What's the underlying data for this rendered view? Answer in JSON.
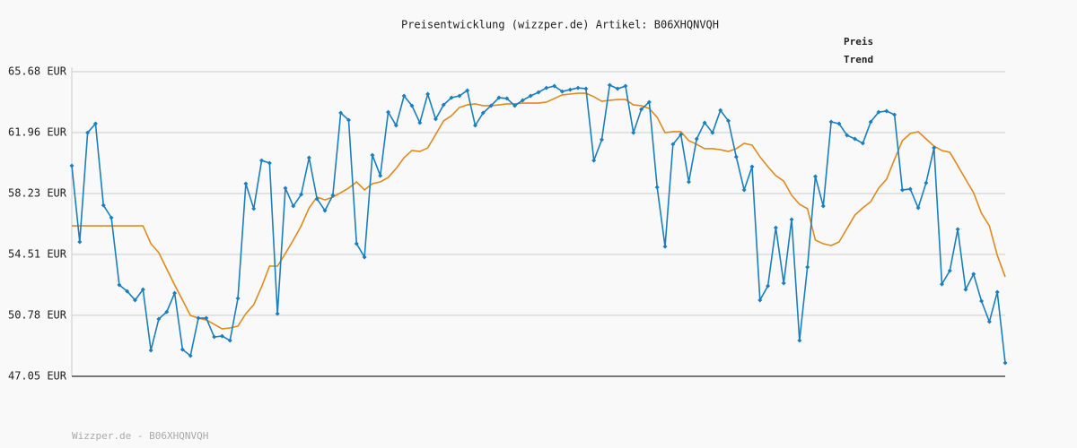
{
  "chart_data": {
    "type": "line",
    "title": "Preisentwicklung (wizzper.de) Artikel: B06XHQNVQH",
    "footer": "Wizzper.de - B06XHQNVQH",
    "ylim": [
      47.05,
      65.68
    ],
    "yticks": [
      {
        "value": 47.05,
        "label": "47.05 EUR"
      },
      {
        "value": 50.78,
        "label": "50.78 EUR"
      },
      {
        "value": 54.51,
        "label": "54.51 EUR"
      },
      {
        "value": 58.23,
        "label": "58.23 EUR"
      },
      {
        "value": 61.96,
        "label": "61.96 EUR"
      },
      {
        "value": 65.68,
        "label": "65.68 EUR"
      }
    ],
    "grid": true,
    "legend": "top-right",
    "series": [
      {
        "name": "Preis",
        "color": "#1b7fbd",
        "markers": true,
        "values": [
          59.93,
          55.27,
          61.95,
          62.5,
          57.51,
          56.75,
          52.64,
          52.25,
          51.71,
          52.36,
          48.64,
          50.56,
          50.99,
          52.14,
          48.69,
          48.31,
          50.61,
          50.61,
          49.46,
          49.51,
          49.24,
          51.82,
          58.83,
          57.3,
          60.25,
          60.09,
          50.88,
          58.56,
          57.46,
          58.17,
          60.42,
          57.9,
          57.19,
          58.12,
          63.16,
          62.72,
          55.16,
          54.34,
          60.58,
          59.32,
          63.21,
          62.39,
          64.2,
          63.6,
          62.56,
          64.31,
          62.78,
          63.65,
          64.09,
          64.2,
          64.53,
          62.39,
          63.16,
          63.6,
          64.09,
          64.04,
          63.6,
          63.93,
          64.2,
          64.42,
          64.69,
          64.8,
          64.47,
          64.58,
          64.69,
          64.64,
          60.25,
          61.52,
          64.86,
          64.64,
          64.8,
          61.95,
          63.38,
          63.82,
          58.61,
          54.99,
          61.24,
          61.84,
          58.94,
          61.57,
          62.56,
          61.95,
          63.32,
          62.67,
          60.47,
          58.45,
          59.87,
          51.71,
          52.58,
          56.14,
          52.75,
          56.64,
          49.24,
          53.73,
          59.27,
          57.46,
          62.61,
          62.5,
          61.79,
          61.57,
          61.3,
          62.61,
          63.21,
          63.27,
          63.05,
          58.45,
          58.5,
          57.35,
          58.88,
          61.02,
          52.69,
          53.51,
          56.04,
          52.36,
          53.3,
          51.65,
          50.39,
          52.2,
          47.87
        ]
      },
      {
        "name": "Trend",
        "color": "#e08a1e",
        "markers": false,
        "values": [
          56.25,
          56.25,
          56.25,
          56.25,
          56.25,
          56.25,
          56.25,
          56.25,
          56.25,
          56.25,
          55.16,
          54.61,
          53.62,
          52.64,
          51.71,
          50.77,
          50.61,
          50.5,
          50.23,
          49.95,
          50.01,
          50.12,
          50.88,
          51.43,
          52.53,
          53.79,
          53.79,
          54.56,
          55.38,
          56.25,
          57.35,
          58.01,
          57.84,
          58.01,
          58.28,
          58.56,
          58.94,
          58.45,
          58.83,
          58.94,
          59.21,
          59.76,
          60.42,
          60.86,
          60.8,
          61.02,
          61.84,
          62.67,
          62.99,
          63.49,
          63.65,
          63.71,
          63.6,
          63.6,
          63.65,
          63.71,
          63.71,
          63.76,
          63.76,
          63.76,
          63.82,
          64.04,
          64.26,
          64.31,
          64.36,
          64.36,
          64.15,
          63.87,
          63.93,
          63.98,
          63.98,
          63.65,
          63.6,
          63.43,
          62.89,
          61.95,
          62.01,
          62.01,
          61.46,
          61.24,
          60.97,
          60.97,
          60.91,
          60.8,
          60.97,
          61.3,
          61.19,
          60.47,
          59.87,
          59.32,
          58.99,
          58.12,
          57.57,
          57.3,
          55.38,
          55.16,
          55.05,
          55.27,
          56.09,
          56.91,
          57.35,
          57.73,
          58.56,
          59.1,
          60.31,
          61.46,
          61.9,
          62.01,
          61.57,
          61.13,
          60.86,
          60.75,
          59.93,
          59.1,
          58.28,
          57.02,
          56.25,
          54.45,
          53.13
        ]
      }
    ]
  }
}
